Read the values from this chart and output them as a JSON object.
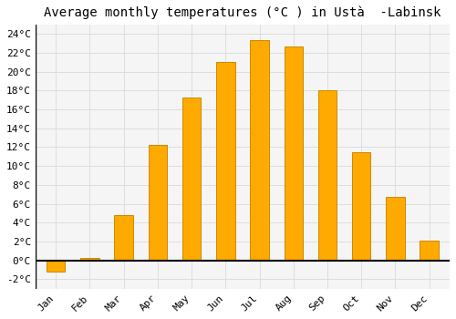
{
  "title": "Average monthly temperatures (°C ) in Ustà  -Labinsk",
  "months": [
    "Jan",
    "Feb",
    "Mar",
    "Apr",
    "May",
    "Jun",
    "Jul",
    "Aug",
    "Sep",
    "Oct",
    "Nov",
    "Dec"
  ],
  "temperatures": [
    -1.2,
    0.3,
    4.8,
    12.2,
    17.3,
    21.0,
    23.3,
    22.7,
    18.0,
    11.5,
    6.7,
    2.1
  ],
  "bar_color": "#FFAA00",
  "bar_edge_color": "#CC8800",
  "ylim": [
    -3,
    25
  ],
  "yticks": [
    -2,
    0,
    2,
    4,
    6,
    8,
    10,
    12,
    14,
    16,
    18,
    20,
    22,
    24
  ],
  "ytick_labels": [
    "-2°C",
    "0°C",
    "2°C",
    "4°C",
    "6°C",
    "8°C",
    "10°C",
    "12°C",
    "14°C",
    "16°C",
    "18°C",
    "20°C",
    "22°C",
    "24°C"
  ],
  "background_color": "#ffffff",
  "plot_bg_color": "#f5f5f5",
  "grid_color": "#dddddd",
  "title_fontsize": 10,
  "tick_fontsize": 8,
  "bar_width": 0.55
}
